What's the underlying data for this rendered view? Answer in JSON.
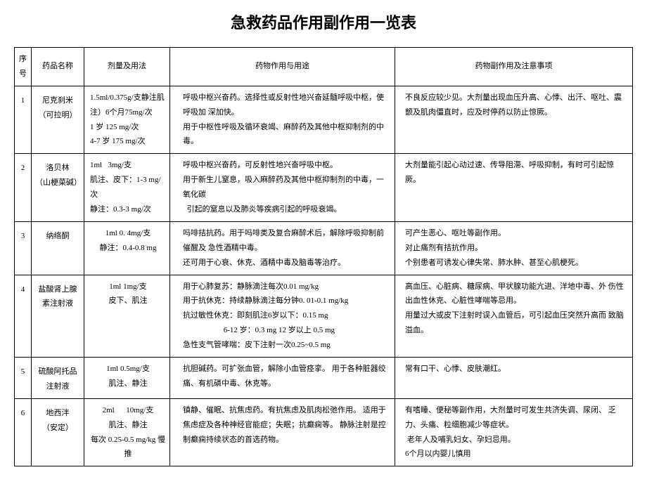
{
  "title": "急救药品作用副作用一览表",
  "headers": {
    "seq": "序号",
    "name": "药品名称",
    "dosage": "剂量及用法",
    "effect": "药物作用与用途",
    "side": "药物副作用及注意事项"
  },
  "rows": [
    {
      "seq": "1",
      "name": "尼克刹米\n（可拉明）",
      "dosage": "1.5ml/0.375g/支静注肌注）6个月75mg/次\n1 岁 125 mg/次\n4-7 岁 175 mg/次",
      "effect": "呼吸中枢兴奋药。选择性或反射性地兴奋延髓呼吸中枢，使呼吸加 深加快。\n用于中枢性呼吸及循环衰竭、麻醉药及其他中枢抑制剂的中毒。",
      "side": "不良反应较少见。大剂量出现血压升高、心悸、出汗、呕吐、震颤及肌肉僵直时，应及时停药以防止惊厥。"
    },
    {
      "seq": "2",
      "name": "洛贝林\n（山梗菜碱）",
      "dosage": "1ml   3mg/支\n肌注、皮下：1-3 mg/次\n静注：0.3-3 mg/次",
      "effect": "呼吸中枢兴奋药，可反射性地兴奋呼吸中枢。\n用于新生儿窒息，吸入麻醉药及其他中枢抑制剂的中毒，一氧化碳\n  引起的窒息以及肺炎等疾病引起的呼吸衰竭。",
      "side": "大剂量能引起心动过速、传导阻滞、呼吸抑制，有时可引起惊厥。"
    },
    {
      "seq": "3",
      "name": "纳络酮",
      "dosage": "1ml 0. 4mg/支\n静注：0.4-0.8 mg",
      "effect": "吗啡拮抗药。用于吗啡类及复合麻醉术后，解除呼吸抑制前催醒及 急性酒精中毒。\n还可用于心衰、休克、酒精中毒及脑毒等治疗。",
      "side": "可产生恶心、呕吐等副作用。\n对止痛剂有拮抗作用。\n个别患者可诱发心律失常、肺水肿、甚至心肌梗死。"
    },
    {
      "seq": "4",
      "name": "盐酸肾上腺素注射液",
      "dosage": "1ml 1mg/支\n皮下、肌注",
      "effect": "用于心肺复苏：静脉滴注每次0.01 mg/kg\n用于抗休克：持续静脉滴注每分钟0. 01-0.1 mg/kg\n抗过敏性休克：即刻肌注6岁以下：0.15 mg\n                     6-12 岁：0.3 mg 12 岁以上 0.5 mg\n急性支气管哮喘：皮下注射一次0.25~0.5 mg",
      "side": "高血压、心脏病、糖尿病、甲状腺功能亢进、洋地中毒、外 伤性出血性休克、心脏性哮喘等忌用。\n用量过大或皮下注射时误入血管后，可引起血压突然升高而 致脑溢血。"
    },
    {
      "seq": "5",
      "name": "硫酸阿托品注射液",
      "dosage": "1ml 0.5mg/支\n肌注、静注",
      "effect": "抗胆碱药。可扩张血管，解除小血管痉挛。 用于各种脏器绞痛、有机磷中毒、休克等。",
      "side": "常有口干、心悸、皮肤潮红。"
    },
    {
      "seq": "6",
      "name": "地西泮\n（安定）",
      "dosage": "2ml      10mg/支\n肌注、静注\n每次 0.25-0.5 mg/kg 慢推",
      "effect": "镇静、催眠、抗焦虑药。有抗焦虑及肌肉松弛作用。 适用于焦虑症及各种神经官能症；失眠；抗癫痫等。 静脉注射是控制癫痫持续状态的首选药物。",
      "side": "有嗜睡、便秘等副作用，大剂量时可发生共济失调、尿闭、 乏力、头痛、粒细胞减少等症状。\n 老年人及哺乳妇女、孕妇忌用。\n6个月以内婴儿慎用"
    }
  ],
  "style": {
    "font_family": "SimSun",
    "title_font_family": "SimHei",
    "title_font_size": 22,
    "body_font_size": 11,
    "line_height": 1.9,
    "border_color": "#000000",
    "background_color": "#ffffff",
    "text_color": "#000000",
    "col_widths": {
      "seq": 24,
      "name": 75,
      "dosage": 122,
      "effect": 320
    }
  }
}
